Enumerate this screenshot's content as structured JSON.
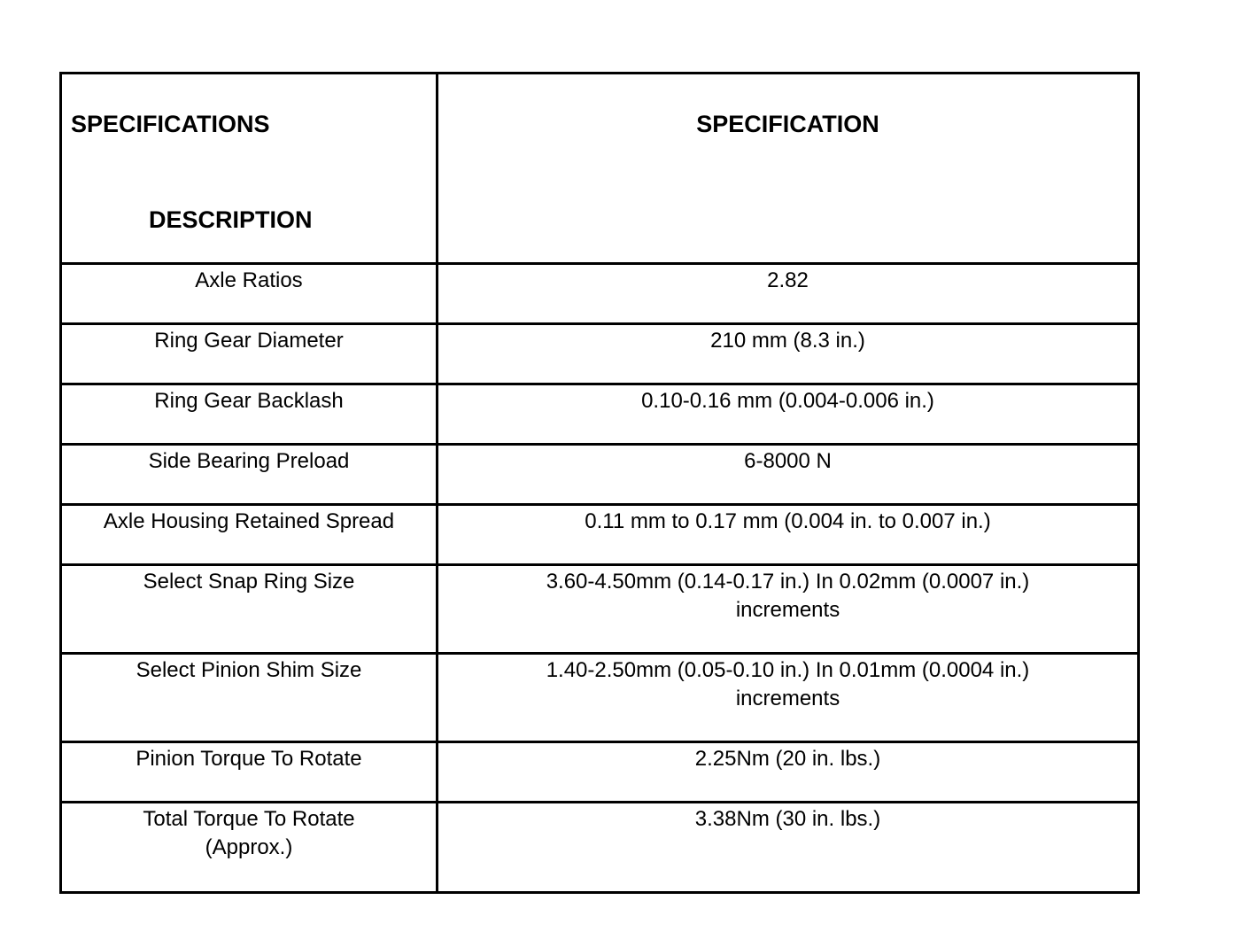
{
  "header": {
    "col1_line1": "SPECIFICATIONS",
    "col1_line2": "DESCRIPTION",
    "col2": "SPECIFICATION"
  },
  "rows": [
    {
      "description": "Axle Ratios",
      "specification": "2.82"
    },
    {
      "description": "Ring Gear Diameter",
      "specification": "210 mm (8.3 in.)"
    },
    {
      "description": "Ring Gear Backlash",
      "specification": "0.10-0.16 mm (0.004-0.006 in.)"
    },
    {
      "description": "Side Bearing Preload",
      "specification": "6-8000 N"
    },
    {
      "description": "Axle Housing Retained Spread",
      "specification": "0.11 mm to 0.17 mm (0.004 in. to 0.007 in.)"
    },
    {
      "description": "Select Snap Ring Size",
      "specification": "3.60-4.50mm (0.14-0.17 in.) In 0.02mm (0.0007 in.)\nincrements"
    },
    {
      "description": "Select Pinion Shim Size",
      "specification": "1.40-2.50mm (0.05-0.10 in.) In 0.01mm (0.0004 in.)\nincrements"
    },
    {
      "description": "Pinion Torque To Rotate",
      "specification": "2.25Nm (20 in. lbs.)"
    },
    {
      "description": "Total Torque To Rotate\n(Approx.)",
      "specification": "3.38Nm (30 in. lbs.)"
    }
  ]
}
